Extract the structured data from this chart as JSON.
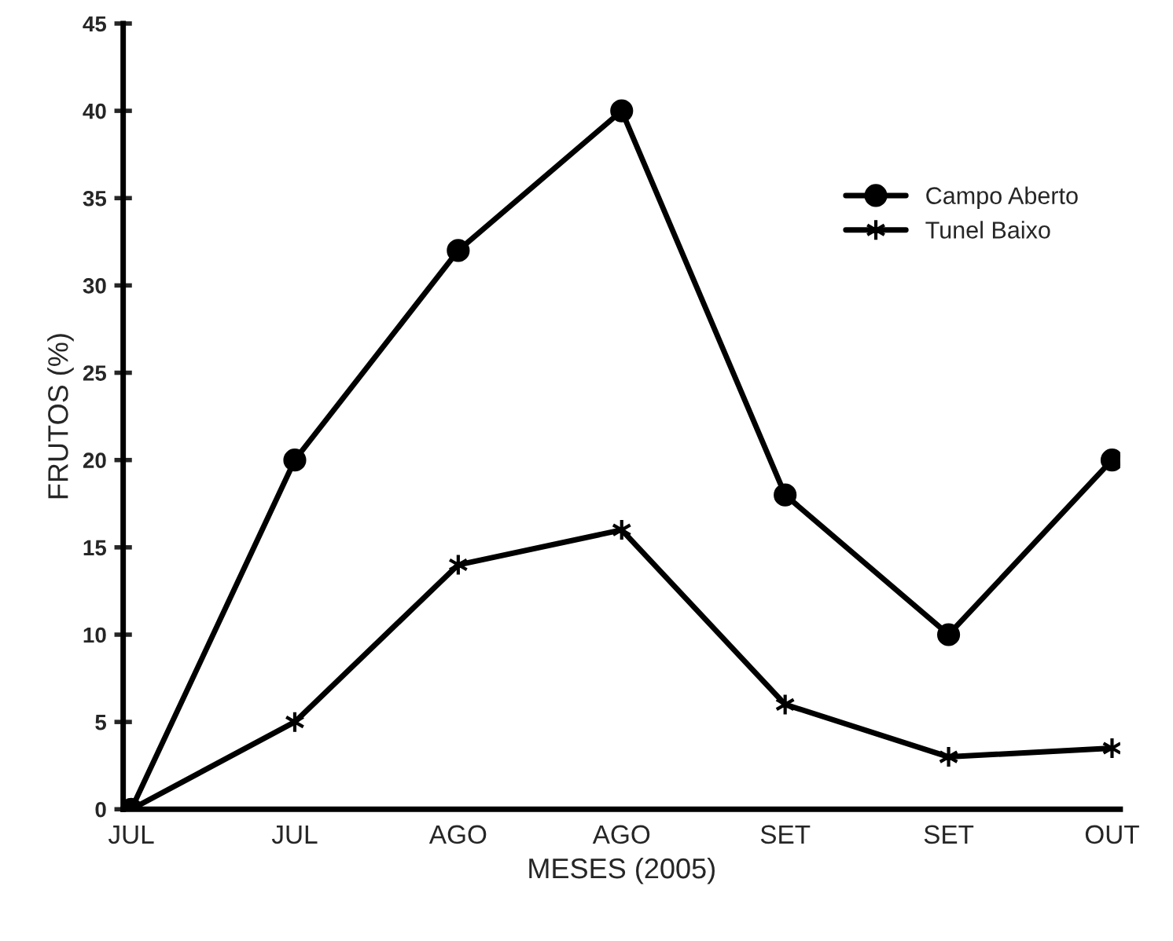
{
  "chart_data": {
    "type": "line",
    "xlabel": "MESES (2005)",
    "ylabel": "FRUTOS (%)",
    "categories": [
      "JUL",
      "JUL",
      "AGO",
      "AGO",
      "SET",
      "SET",
      "OUT"
    ],
    "series": [
      {
        "name": "Campo Aberto",
        "color": "#000000",
        "marker": "circle",
        "values": [
          0,
          20,
          32,
          40,
          18,
          10,
          20
        ]
      },
      {
        "name": "Tunel Baixo",
        "color": "#000000",
        "marker": "cross",
        "values": [
          0,
          5,
          14,
          16,
          6,
          3,
          3.5
        ]
      }
    ],
    "ylim": [
      0,
      45
    ],
    "yticks": [
      0,
      5,
      10,
      15,
      20,
      25,
      30,
      35,
      40,
      45
    ],
    "grid": false,
    "legend": "top right",
    "line_style": "solid"
  }
}
